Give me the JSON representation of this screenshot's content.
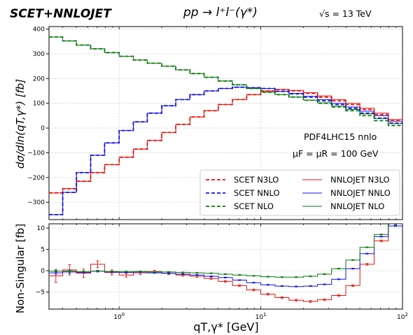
{
  "header": {
    "brand": "SCET+NNLOJET",
    "process": "pp → l⁺l⁻(γ*)",
    "energy": "√s = 13 TeV"
  },
  "chart_data": [
    {
      "type": "line",
      "panel": "main",
      "ylabel": "dσ/dln(qT,γ*) [fb]",
      "xscale": "log",
      "xlim": [
        0.32,
        100
      ],
      "ylim": [
        -370,
        410
      ],
      "yticks": [
        -300,
        -200,
        -100,
        0,
        100,
        200,
        300,
        400
      ],
      "ytick_labels": [
        "−300",
        "−200",
        "−100",
        "0",
        "100",
        "200",
        "300",
        "400"
      ],
      "grid": true,
      "legend_position": "lower-right",
      "annotations": [
        "PDF4LHC15 nnlo",
        "μF = μR = 100 GeV"
      ],
      "bin_edges": [
        0.32,
        0.4,
        0.5,
        0.63,
        0.79,
        1.0,
        1.26,
        1.58,
        2.0,
        2.51,
        3.16,
        3.98,
        5.01,
        6.31,
        7.94,
        10.0,
        12.6,
        15.8,
        20.0,
        25.1,
        31.6,
        39.8,
        50.1,
        63.1,
        79.4,
        100
      ],
      "series": [
        {
          "name": "SCET N3LO",
          "style": "dashed",
          "color": "#e8140d",
          "values": [
            -262,
            -245,
            -215,
            -180,
            -148,
            -118,
            -85,
            -50,
            -18,
            15,
            45,
            70,
            95,
            115,
            135,
            150,
            155,
            150,
            140,
            125,
            110,
            95,
            75,
            55,
            30
          ]
        },
        {
          "name": "SCET NNLO",
          "style": "dashed",
          "color": "#1010e8",
          "values": [
            -350,
            -260,
            -180,
            -110,
            -60,
            -10,
            25,
            60,
            90,
            115,
            135,
            150,
            160,
            165,
            163,
            160,
            148,
            138,
            125,
            110,
            95,
            80,
            60,
            40,
            20
          ]
        },
        {
          "name": "SCET NLO",
          "style": "dashed",
          "color": "#0a7a0a",
          "values": [
            368,
            352,
            335,
            320,
            305,
            290,
            275,
            262,
            250,
            235,
            220,
            205,
            190,
            175,
            160,
            145,
            135,
            125,
            112,
            100,
            85,
            70,
            50,
            30,
            10
          ]
        },
        {
          "name": "NNLOJET N3LO",
          "style": "solid",
          "color": "#e8140d",
          "values": [
            -262,
            -245,
            -215,
            -180,
            -148,
            -118,
            -85,
            -50,
            -18,
            15,
            45,
            70,
            95,
            115,
            135,
            150,
            156,
            152,
            143,
            130,
            115,
            100,
            80,
            60,
            35
          ]
        },
        {
          "name": "NNLOJET NNLO",
          "style": "solid",
          "color": "#1010e8",
          "values": [
            -350,
            -260,
            -180,
            -110,
            -60,
            -10,
            25,
            60,
            90,
            115,
            135,
            150,
            160,
            165,
            163,
            160,
            148,
            140,
            128,
            115,
            100,
            85,
            68,
            50,
            28
          ]
        },
        {
          "name": "NNLOJET NLO",
          "style": "solid",
          "color": "#0a7a0a",
          "values": [
            368,
            352,
            335,
            320,
            305,
            290,
            275,
            262,
            250,
            235,
            220,
            205,
            190,
            175,
            160,
            145,
            135,
            125,
            113,
            102,
            88,
            75,
            57,
            38,
            18
          ]
        }
      ]
    },
    {
      "type": "line",
      "panel": "ratio",
      "ylabel": "Non-Singular [fb]",
      "xlabel": "qT,γ* [GeV]",
      "xscale": "log",
      "xlim": [
        0.32,
        100
      ],
      "ylim": [
        -9,
        11
      ],
      "yticks": [
        -5,
        0,
        5,
        10
      ],
      "ytick_labels": [
        "−5",
        "0",
        "5",
        "10"
      ],
      "xticks": [
        1,
        10,
        100
      ],
      "grid": true,
      "bin_edges": [
        0.32,
        0.4,
        0.5,
        0.63,
        0.79,
        1.0,
        1.26,
        1.58,
        2.0,
        2.51,
        3.16,
        3.98,
        5.01,
        6.31,
        7.94,
        10.0,
        12.6,
        15.8,
        20.0,
        25.1,
        31.6,
        39.8,
        50.1,
        63.1,
        79.4,
        100
      ],
      "series": [
        {
          "name": "N3LO",
          "color": "#e8140d",
          "values": [
            -1.2,
            0.2,
            -0.6,
            1.5,
            -0.4,
            -1.0,
            -0.5,
            -0.2,
            -0.6,
            -1.0,
            -1.3,
            -1.8,
            -2.5,
            -3.5,
            -4.5,
            -5.5,
            -6.3,
            -6.9,
            -7.2,
            -6.8,
            -5.8,
            -3.5,
            1.5,
            7,
            11
          ],
          "errors": [
            1.5,
            1.2,
            1.0,
            0.8,
            0.6,
            0.5,
            0.4,
            0.3,
            0.3,
            0.3,
            0.3,
            0.2,
            0.2,
            0.2,
            0.2,
            0.2,
            0.2,
            0.2,
            0.2,
            0.2,
            0.2,
            0.2,
            0.2,
            0.2,
            0.2
          ]
        },
        {
          "name": "NNLO",
          "color": "#1010e8",
          "values": [
            -0.5,
            -0.3,
            -0.4,
            -0.1,
            -0.3,
            -0.4,
            -0.3,
            -0.5,
            -0.6,
            -0.8,
            -1.0,
            -1.3,
            -1.6,
            -2.2,
            -2.8,
            -3.3,
            -3.6,
            -3.7,
            -3.6,
            -3.2,
            -2.0,
            0.5,
            4.0,
            8.0,
            10.5
          ],
          "errors": [
            0.3,
            0.3,
            0.2,
            0.2,
            0.2,
            0.2,
            0.2,
            0.1,
            0.1,
            0.1,
            0.1,
            0.1,
            0.1,
            0.1,
            0.1,
            0.1,
            0.1,
            0.1,
            0.1,
            0.1,
            0.1,
            0.1,
            0.1,
            0.1,
            0.1
          ]
        },
        {
          "name": "NLO",
          "color": "#0a7a0a",
          "values": [
            -0.1,
            -0.1,
            -0.2,
            -0.1,
            -0.2,
            -0.2,
            -0.2,
            -0.3,
            -0.3,
            -0.4,
            -0.5,
            -0.6,
            -0.8,
            -1.0,
            -1.2,
            -1.4,
            -1.5,
            -1.5,
            -1.3,
            -0.8,
            0.5,
            2.5,
            5.5,
            8.5,
            11
          ],
          "errors": [
            0.2,
            0.2,
            0.1,
            0.1,
            0.1,
            0.1,
            0.1,
            0.1,
            0.1,
            0.1,
            0.1,
            0.1,
            0.1,
            0.1,
            0.1,
            0.1,
            0.1,
            0.1,
            0.1,
            0.1,
            0.1,
            0.1,
            0.1,
            0.1,
            0.1
          ]
        }
      ]
    }
  ]
}
